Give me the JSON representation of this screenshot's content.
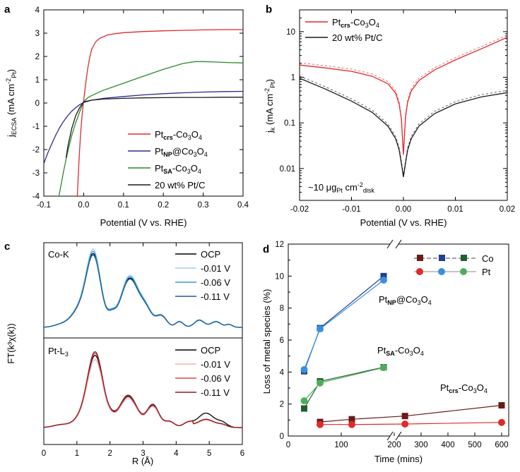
{
  "panels": {
    "a": {
      "letter": "a",
      "xlabel": "Potential (V vs. RHE)",
      "ylabel": "j_ECSA (mA cm^-2 Pt)",
      "xlim": [
        -0.1,
        0.4
      ],
      "ylim": [
        -4,
        4
      ],
      "xticks": [
        "-0.1",
        "0.0",
        "0.1",
        "0.2",
        "0.3",
        "0.4"
      ],
      "yticks": [
        "-4",
        "-3",
        "-2",
        "-1",
        "0",
        "1",
        "2",
        "3",
        "4"
      ],
      "legend": [
        {
          "name": "Pt_crs-Co3O4",
          "color": "#e0292c"
        },
        {
          "name": "Pt_NP@Co3O4",
          "color": "#2e2a8f"
        },
        {
          "name": "Pt_SA-Co3O4",
          "color": "#2b8a2b"
        },
        {
          "name": "20 wt% Pt/C",
          "color": "#1a1a1a"
        }
      ]
    },
    "b": {
      "letter": "b",
      "xlabel": "Potential (V vs. RHE)",
      "ylabel": "j_k (mA cm^-2 Pt)",
      "xticks": [
        "-0.02",
        "-0.01",
        "0.00",
        "0.01",
        "0.02"
      ],
      "yticks": [
        "0.01",
        "0.1",
        "1",
        "10"
      ],
      "legend": [
        {
          "name": "Pt_crs-Co3O4",
          "color": "#e0292c"
        },
        {
          "name": "20 wt% Pt/C",
          "color": "#1a1a1a"
        }
      ],
      "annotation": "~10 μg_Pt cm^-2 disk"
    },
    "c": {
      "letter": "c",
      "xlabel": "R (Å)",
      "ylabel": "FT(k³χ(k))",
      "xticks": [
        "0",
        "1",
        "2",
        "3",
        "4",
        "5",
        "6"
      ],
      "top_label": "Co-K",
      "bottom_label": "Pt-L3",
      "legend_top": [
        {
          "name": "OCP",
          "color": "#000000"
        },
        {
          "name": "-0.01 V",
          "color": "#9fd3ef"
        },
        {
          "name": "-0.06 V",
          "color": "#3a9ad6"
        },
        {
          "name": "-0.11 V",
          "color": "#1e5f96"
        }
      ],
      "legend_bottom": [
        {
          "name": "OCP",
          "color": "#000000"
        },
        {
          "name": "-0.01 V",
          "color": "#f3b3b6"
        },
        {
          "name": "-0.06 V",
          "color": "#e0474e"
        },
        {
          "name": "-0.11 V",
          "color": "#8e1a22"
        }
      ]
    },
    "d": {
      "letter": "d",
      "xlabel": "Time (mins)",
      "ylabel": "Loss of metal species (%)",
      "yticks": [
        "0",
        "2",
        "4",
        "6",
        "8",
        "10",
        "12"
      ],
      "xticks": [
        "0",
        "100",
        "200",
        "300",
        "400",
        "500",
        "600"
      ],
      "legend": {
        "co_label": "Co",
        "pt_label": "Pt"
      },
      "labels": {
        "np": "Pt_NP@Co3O4",
        "sa": "Pt_SA-Co3O4",
        "crs": "Pt_crs-Co3O4"
      }
    }
  },
  "chart_data": [
    {
      "type": "line",
      "panel": "a",
      "title": "",
      "xlabel": "Potential (V vs. RHE)",
      "ylabel": "j_ECSA (mA cm-2 Pt)",
      "xlim": [
        -0.1,
        0.4
      ],
      "ylim": [
        -4,
        4
      ],
      "series": [
        {
          "name": "Pt_crs-Co3O4",
          "color": "#e0292c",
          "x": [
            -0.016,
            -0.012,
            -0.008,
            -0.004,
            0.0,
            0.005,
            0.01,
            0.015,
            0.02,
            0.03,
            0.04,
            0.06,
            0.08,
            0.1,
            0.15,
            0.2,
            0.25,
            0.3,
            0.35,
            0.4
          ],
          "y": [
            -4.0,
            -2.6,
            -1.4,
            -0.55,
            0.1,
            0.8,
            1.45,
            1.95,
            2.3,
            2.62,
            2.78,
            2.92,
            2.98,
            3.02,
            3.07,
            3.1,
            3.12,
            3.14,
            3.15,
            3.15
          ]
        },
        {
          "name": "Pt_NP@Co3O4",
          "color": "#2e2a8f",
          "x": [
            -0.1,
            -0.09,
            -0.08,
            -0.07,
            -0.06,
            -0.05,
            -0.04,
            -0.03,
            -0.02,
            -0.01,
            0.0,
            0.02,
            0.05,
            0.1,
            0.15,
            0.2,
            0.25,
            0.3,
            0.35,
            0.4
          ],
          "y": [
            -2.6,
            -2.15,
            -1.75,
            -1.38,
            -1.05,
            -0.78,
            -0.55,
            -0.35,
            -0.2,
            -0.07,
            0.02,
            0.12,
            0.2,
            0.28,
            0.35,
            0.4,
            0.44,
            0.47,
            0.49,
            0.5
          ]
        },
        {
          "name": "Pt_SA-Co3O4",
          "color": "#2b8a2b",
          "x": [
            -0.062,
            -0.05,
            -0.04,
            -0.03,
            -0.02,
            -0.01,
            0.0,
            0.01,
            0.02,
            0.05,
            0.1,
            0.15,
            0.2,
            0.25,
            0.28,
            0.3,
            0.33,
            0.36,
            0.4
          ],
          "y": [
            -4.0,
            -2.9,
            -2.1,
            -1.4,
            -0.85,
            -0.38,
            0.05,
            0.22,
            0.32,
            0.55,
            0.85,
            1.15,
            1.45,
            1.7,
            1.78,
            1.78,
            1.76,
            1.74,
            1.72
          ]
        },
        {
          "name": "20 wt% Pt/C",
          "color": "#1a1a1a",
          "x": [
            -0.044,
            -0.04,
            -0.03,
            -0.02,
            -0.01,
            0.0,
            0.02,
            0.05,
            0.1,
            0.15,
            0.2,
            0.25,
            0.3,
            0.35,
            0.4
          ],
          "y": [
            -2.35,
            -1.9,
            -1.1,
            -0.55,
            -0.2,
            0.05,
            0.12,
            0.17,
            0.2,
            0.22,
            0.23,
            0.24,
            0.24,
            0.25,
            0.25
          ]
        }
      ]
    },
    {
      "type": "line",
      "panel": "b",
      "title": "",
      "xlabel": "Potential (V vs. RHE)",
      "ylabel": "j_k (mA cm-2 Pt)",
      "xlim": [
        -0.02,
        0.02
      ],
      "ylim": [
        0.002,
        30
      ],
      "yscale": "log",
      "series": [
        {
          "name": "Pt_crs-Co3O4",
          "color": "#e0292c",
          "x": [
            -0.02,
            -0.015,
            -0.01,
            -0.006,
            -0.003,
            -0.0015,
            -0.0008,
            -0.0004,
            0.0,
            0.0004,
            0.0008,
            0.0015,
            0.003,
            0.006,
            0.01,
            0.015,
            0.02
          ],
          "y": [
            1.85,
            1.6,
            1.35,
            1.05,
            0.72,
            0.45,
            0.25,
            0.12,
            0.02,
            0.13,
            0.28,
            0.5,
            0.85,
            1.45,
            2.4,
            4.2,
            7.5
          ]
        },
        {
          "name": "20 wt% Pt/C",
          "color": "#1a1a1a",
          "x": [
            -0.02,
            -0.015,
            -0.01,
            -0.006,
            -0.003,
            -0.0015,
            -0.0008,
            -0.0003,
            0.0,
            0.0003,
            0.0008,
            0.0015,
            0.003,
            0.006,
            0.01,
            0.015,
            0.02
          ],
          "y": [
            0.95,
            0.55,
            0.3,
            0.17,
            0.085,
            0.045,
            0.025,
            0.011,
            0.0065,
            0.011,
            0.025,
            0.045,
            0.085,
            0.16,
            0.26,
            0.37,
            0.46
          ]
        }
      ]
    },
    {
      "type": "line",
      "panel": "c",
      "title": "",
      "xlabel": "R (Å)",
      "ylabel": "FT(k3χ(k))",
      "xlim": [
        0,
        6
      ],
      "series": [
        {
          "name": "Co-K OCP",
          "color": "#000000"
        },
        {
          "name": "Co-K -0.01 V",
          "color": "#9fd3ef"
        },
        {
          "name": "Co-K -0.06 V",
          "color": "#3a9ad6"
        },
        {
          "name": "Co-K -0.11 V",
          "color": "#1e5f96"
        },
        {
          "name": "Pt-L3 OCP",
          "color": "#000000"
        },
        {
          "name": "Pt-L3 -0.01 V",
          "color": "#f3b3b6"
        },
        {
          "name": "Pt-L3 -0.06 V",
          "color": "#e0474e"
        },
        {
          "name": "Pt-L3 -0.11 V",
          "color": "#8e1a22"
        }
      ]
    },
    {
      "type": "line",
      "panel": "d",
      "title": "",
      "xlabel": "Time (mins)",
      "ylabel": "Loss of metal species (%)",
      "ylim": [
        0,
        12
      ],
      "series": [
        {
          "name": "Pt_NP@Co3O4 Co",
          "color": "#1f3f8f",
          "marker": "square",
          "x": [
            30,
            60,
            180
          ],
          "y": [
            4.05,
            6.75,
            10.0
          ]
        },
        {
          "name": "Pt_NP@Co3O4 Pt",
          "color": "#3a8fe0",
          "marker": "circle",
          "x": [
            30,
            60,
            180
          ],
          "y": [
            4.15,
            6.7,
            9.75
          ]
        },
        {
          "name": "Pt_SA-Co3O4 Co",
          "color": "#1f5f2f",
          "marker": "square",
          "x": [
            30,
            60,
            180
          ],
          "y": [
            1.72,
            3.42,
            4.3
          ]
        },
        {
          "name": "Pt_SA-Co3O4 Pt",
          "color": "#4cae5c",
          "marker": "circle",
          "x": [
            30,
            60,
            180
          ],
          "y": [
            2.2,
            3.32,
            4.28
          ]
        },
        {
          "name": "Pt_crs-Co3O4 Co",
          "color": "#6a1a1a",
          "marker": "square",
          "x": [
            60,
            120,
            240,
            600
          ],
          "y": [
            0.88,
            1.05,
            1.25,
            1.92
          ]
        },
        {
          "name": "Pt_crs-Co3O4 Pt",
          "color": "#e02a2a",
          "marker": "circle",
          "x": [
            60,
            120,
            240,
            600
          ],
          "y": [
            0.72,
            0.72,
            0.75,
            0.85
          ]
        }
      ]
    }
  ]
}
